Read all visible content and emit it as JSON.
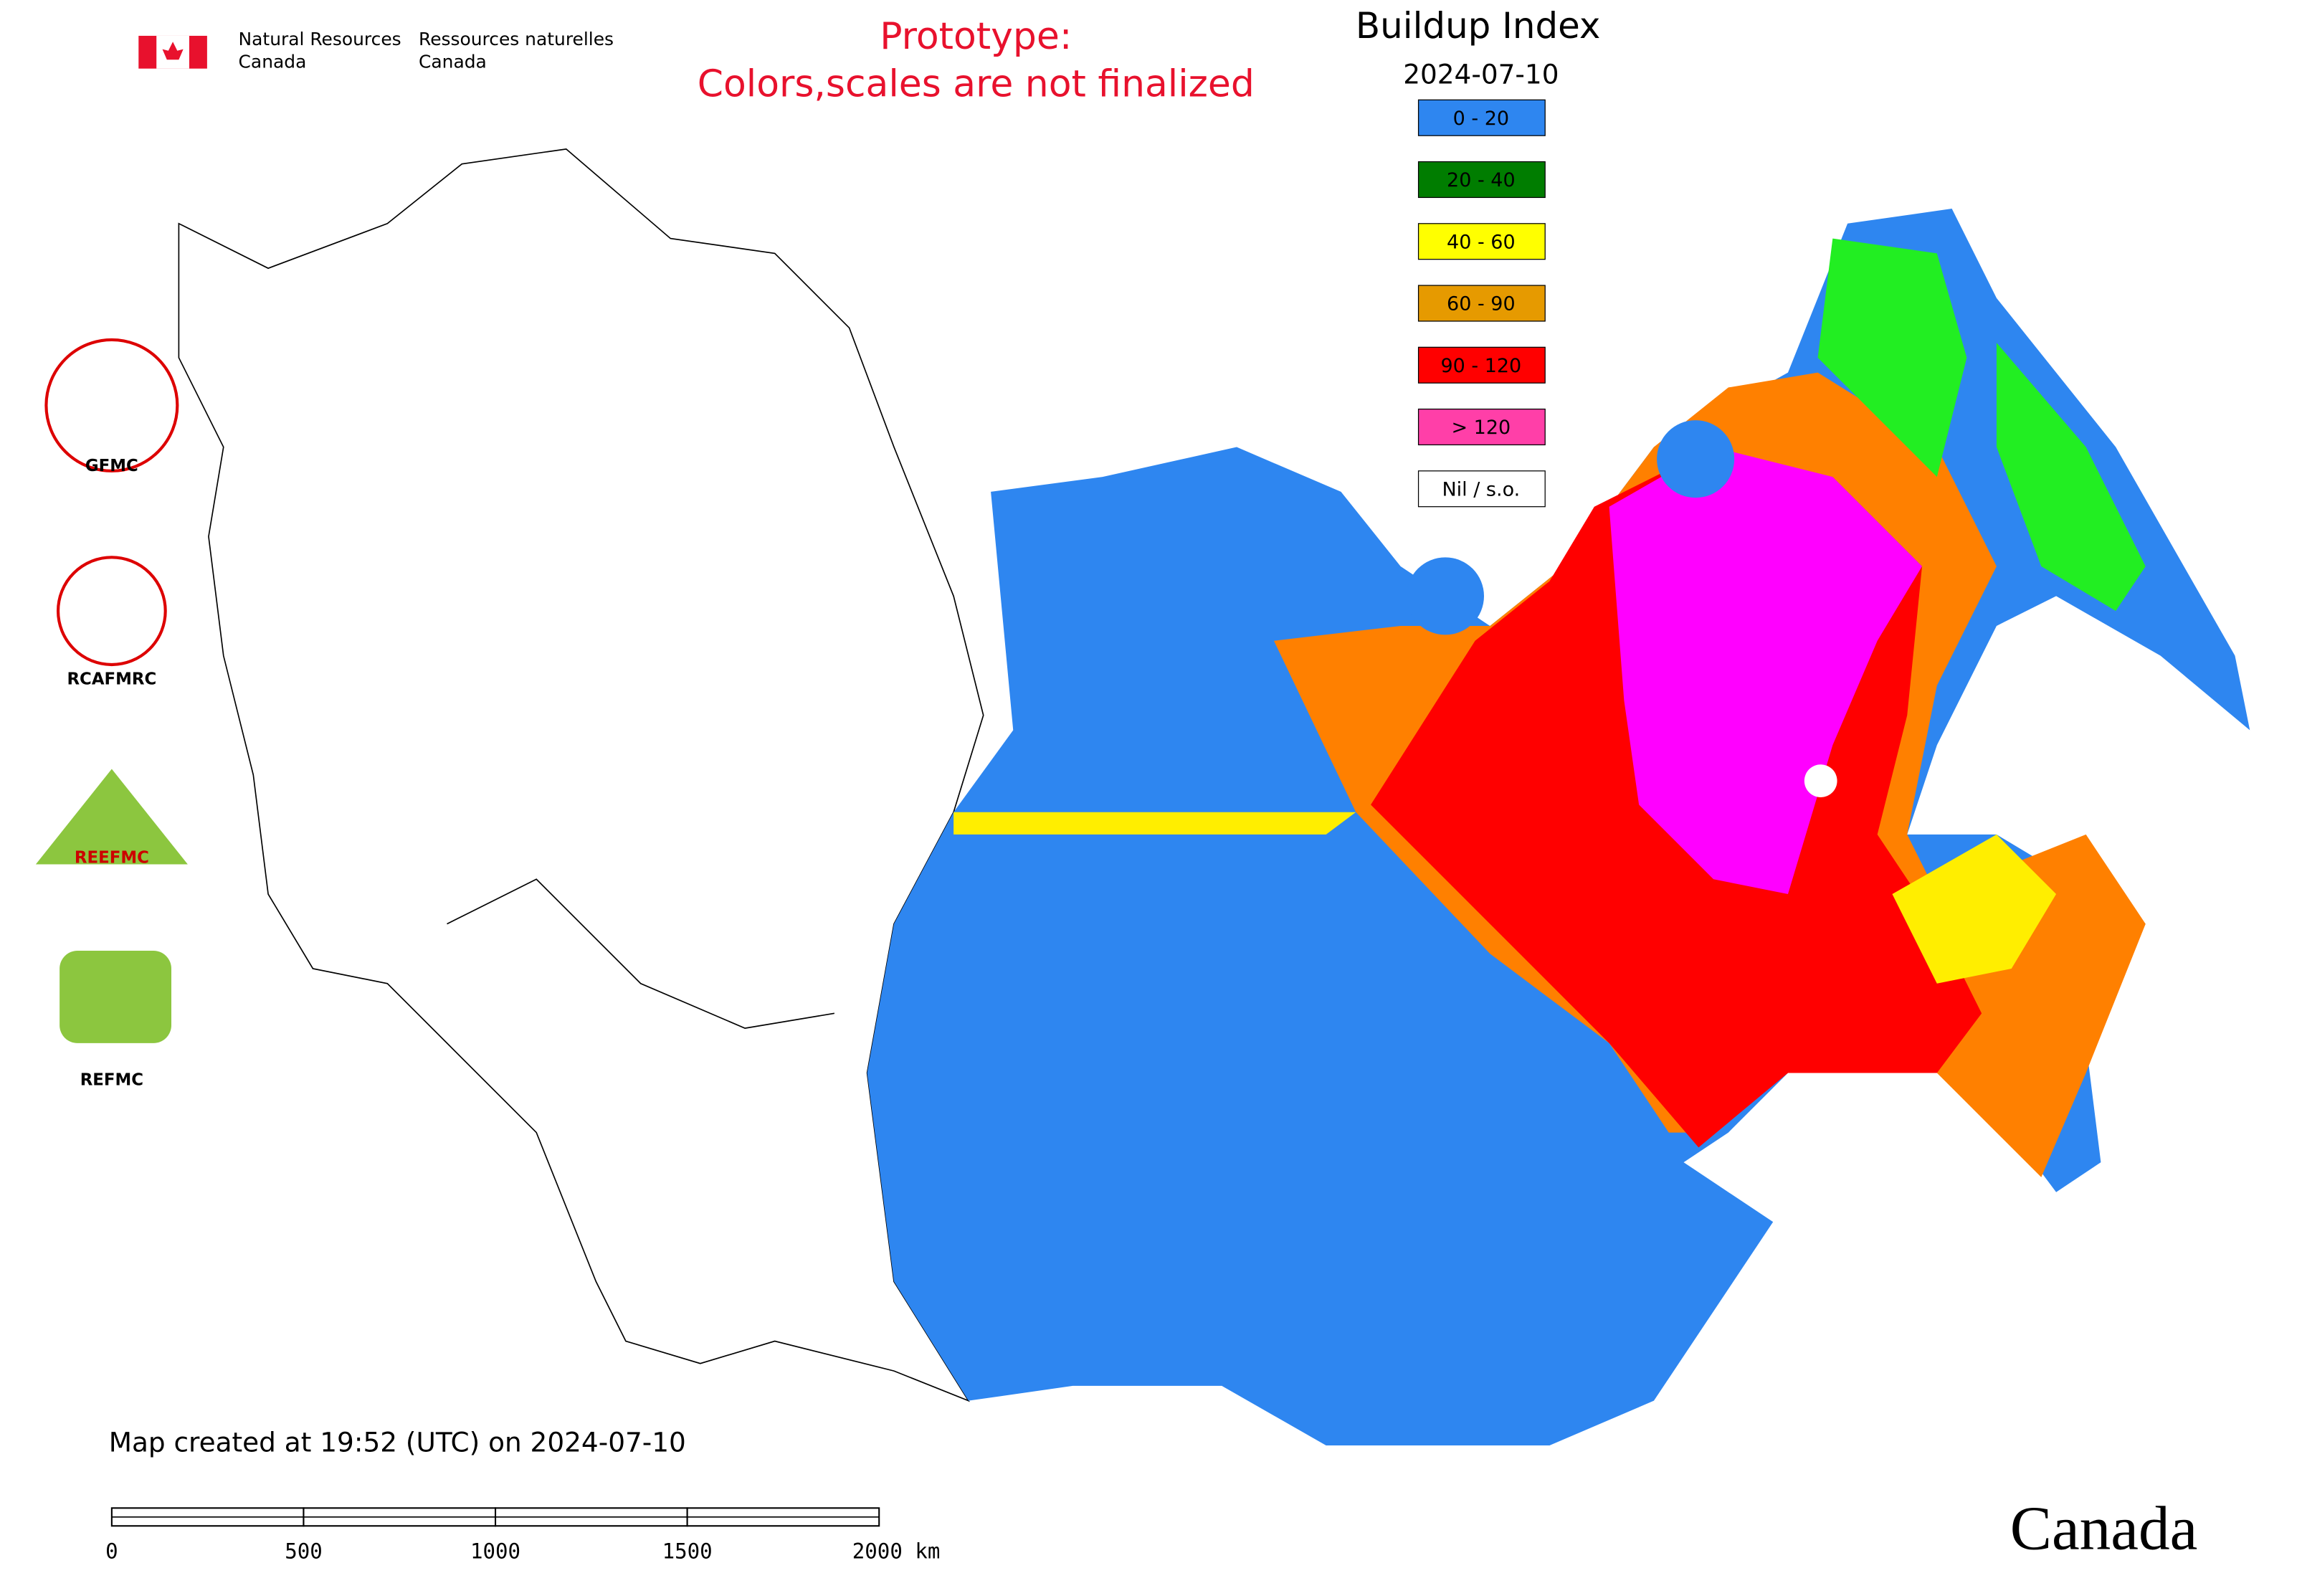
{
  "header": {
    "department_en": [
      "Natural Resources",
      "Canada"
    ],
    "department_fr": [
      "Ressources naturelles",
      "Canada"
    ]
  },
  "notice": [
    "Prototype:",
    "Colors,scales are not finalized"
  ],
  "legend": {
    "title": "Buildup Index",
    "date": "2024-07-10",
    "items": [
      {
        "label": "0 - 20",
        "color": "#2e86f0"
      },
      {
        "label": "20 - 40",
        "color": "#007d00"
      },
      {
        "label": "40 - 60",
        "color": "#ffff00"
      },
      {
        "label": "60 - 90",
        "color": "#e69a00"
      },
      {
        "label": "90 - 120",
        "color": "#ff0000"
      },
      {
        "label": "> 120",
        "color": "#ff3fa8"
      },
      {
        "label": "Nil / s.o.",
        "color": "#ffffff"
      }
    ]
  },
  "logos": [
    "GFMC",
    "RCAFMRC",
    "REEFMC",
    "REFMC"
  ],
  "footer": "Map created at 19:52 (UTC) on 2024-07-10",
  "scale_bar": {
    "labels": [
      "0",
      "500",
      "1000",
      "1500",
      "2000 km"
    ]
  },
  "wordmark": "Canada"
}
